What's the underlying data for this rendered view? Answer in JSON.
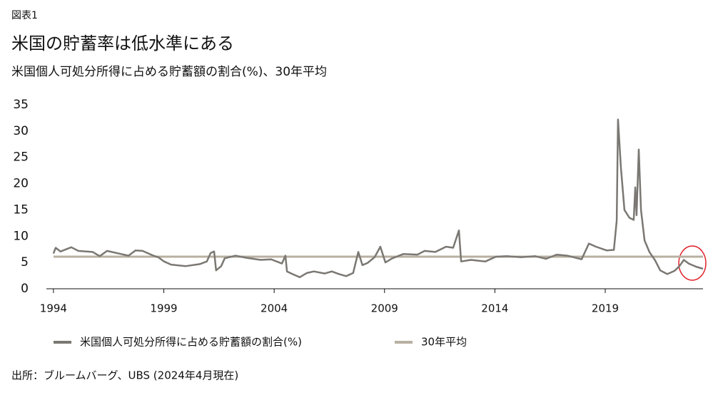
{
  "chart_data": {
    "type": "line",
    "figure_label": "図表1",
    "title": "米国の貯蓄率は低水準にある",
    "subtitle": "米国個人可処分所得に占める貯蓄額の割合(%)、30年平均",
    "source": "出所：ブルームバーグ、UBS (2024年4月現在)",
    "xlim": [
      1993.68,
      2023.43
    ],
    "xticks": [
      1994,
      1999,
      2004,
      2009,
      2014,
      2019
    ],
    "ylim": [
      0,
      35
    ],
    "yticks": [
      0,
      5,
      10,
      15,
      20,
      25,
      30,
      35
    ],
    "grid": false,
    "series": [
      {
        "name": "米国個人可処分所得に占める貯蓄額の割合(%)",
        "color": "#7b7873",
        "x": [
          1994.0,
          1994.1,
          1994.32,
          1994.81,
          1995.13,
          1995.78,
          1996.1,
          1996.43,
          1997.07,
          1997.4,
          1997.72,
          1998.04,
          1998.53,
          1998.75,
          1999.01,
          1999.33,
          1999.98,
          2000.63,
          2000.95,
          2001.12,
          2001.28,
          2001.37,
          2001.6,
          2001.76,
          2002.25,
          2002.73,
          2003.38,
          2003.86,
          2004.35,
          2004.51,
          2004.58,
          2004.83,
          2005.16,
          2005.48,
          2005.8,
          2006.29,
          2006.61,
          2006.94,
          2007.26,
          2007.58,
          2007.81,
          2008.0,
          2008.23,
          2008.55,
          2008.81,
          2009.04,
          2009.36,
          2009.85,
          2010.49,
          2010.82,
          2011.3,
          2011.79,
          2012.11,
          2012.37,
          2012.47,
          2012.92,
          2013.57,
          2014.05,
          2014.54,
          2015.18,
          2015.83,
          2016.32,
          2016.8,
          2017.29,
          2017.93,
          2018.26,
          2018.58,
          2019.06,
          2019.39,
          2019.52,
          2019.58,
          2019.71,
          2019.87,
          2020.1,
          2020.29,
          2020.36,
          2020.42,
          2020.52,
          2020.62,
          2020.78,
          2021.0,
          2021.26,
          2021.49,
          2021.81,
          2022.14,
          2022.36,
          2022.56,
          2022.78,
          2023.11,
          2023.43
        ],
        "values": [
          6.7,
          7.8,
          7.1,
          7.9,
          7.2,
          7.0,
          6.2,
          7.2,
          6.6,
          6.3,
          7.3,
          7.2,
          6.3,
          6.0,
          5.2,
          4.6,
          4.3,
          4.7,
          5.2,
          6.8,
          7.1,
          3.5,
          4.3,
          5.8,
          6.3,
          5.9,
          5.5,
          5.6,
          4.8,
          6.3,
          3.3,
          2.8,
          2.2,
          3.0,
          3.3,
          2.9,
          3.3,
          2.8,
          2.4,
          3.0,
          7.0,
          4.5,
          4.9,
          6.0,
          8.0,
          5.0,
          5.8,
          6.6,
          6.5,
          7.2,
          7.0,
          8.0,
          7.8,
          11.1,
          5.2,
          5.5,
          5.2,
          6.1,
          6.2,
          6.0,
          6.2,
          5.7,
          6.5,
          6.3,
          5.6,
          8.6,
          8.0,
          7.3,
          7.4,
          13,
          32.2,
          23,
          15,
          13.5,
          13.1,
          19.3,
          14,
          26.5,
          15,
          9.2,
          7.0,
          5.4,
          3.5,
          2.8,
          3.4,
          4.3,
          5.5,
          4.8,
          4.2,
          3.8
        ]
      }
    ],
    "average": {
      "name": "30年平均",
      "value": 6.1,
      "color": "#b8b0a2"
    }
  }
}
